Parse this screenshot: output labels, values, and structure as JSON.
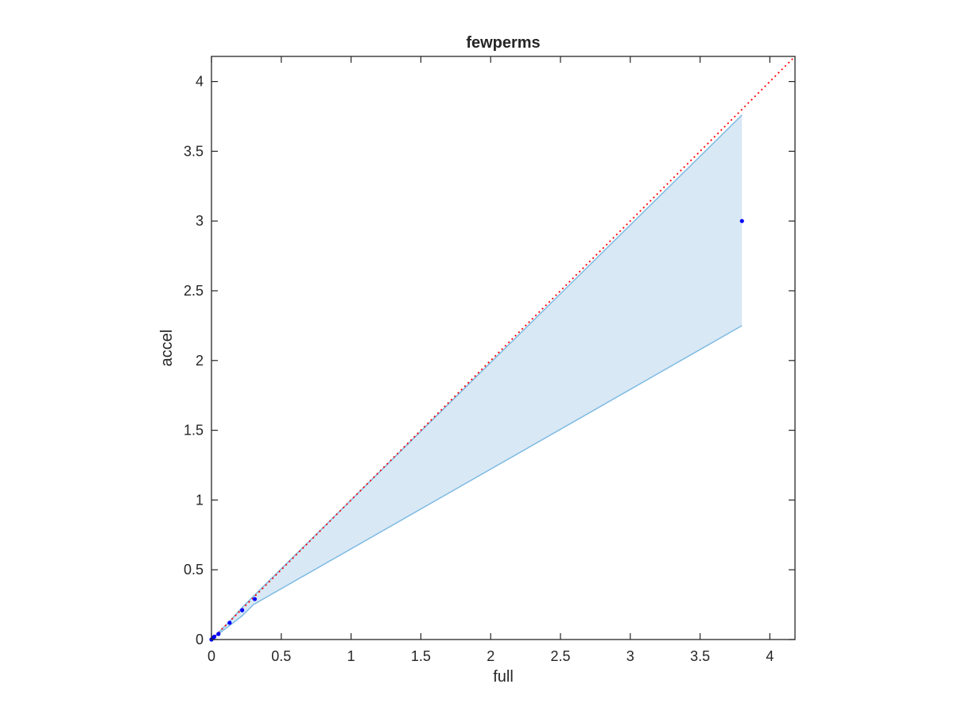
{
  "chart_data": {
    "type": "area",
    "title": "fewperms",
    "xlabel": "full",
    "ylabel": "accel",
    "xlim": [
      0,
      4.18
    ],
    "ylim": [
      0,
      4.18
    ],
    "xticks": [
      "0",
      "0.5",
      "1",
      "1.5",
      "2",
      "2.5",
      "3",
      "3.5",
      "4"
    ],
    "yticks": [
      "0",
      "0.5",
      "1",
      "1.5",
      "2",
      "2.5",
      "3",
      "3.5",
      "4"
    ],
    "grid": false,
    "legend": "none",
    "band": {
      "x": [
        0,
        0.05,
        0.13,
        0.22,
        0.3,
        3.8
      ],
      "lower": [
        0,
        0.04,
        0.1,
        0.17,
        0.25,
        2.25
      ],
      "upper": [
        0,
        0.05,
        0.13,
        0.23,
        0.31,
        3.76
      ]
    },
    "points": {
      "x": [
        0,
        0.01,
        0.02,
        0.05,
        0.13,
        0.22,
        0.31,
        3.8
      ],
      "y": [
        0,
        0.01,
        0.02,
        0.04,
        0.12,
        0.21,
        0.29,
        3.0
      ]
    },
    "reference_line": {
      "x": [
        0,
        4.18
      ],
      "y": [
        0,
        4.18
      ],
      "style": "dotted"
    },
    "colors": {
      "band_fill": "#d9e8f5",
      "band_edge": "#7fbbe3",
      "points": "#0000ff",
      "reference_line": "#ff0000",
      "axes": "#262626"
    }
  }
}
